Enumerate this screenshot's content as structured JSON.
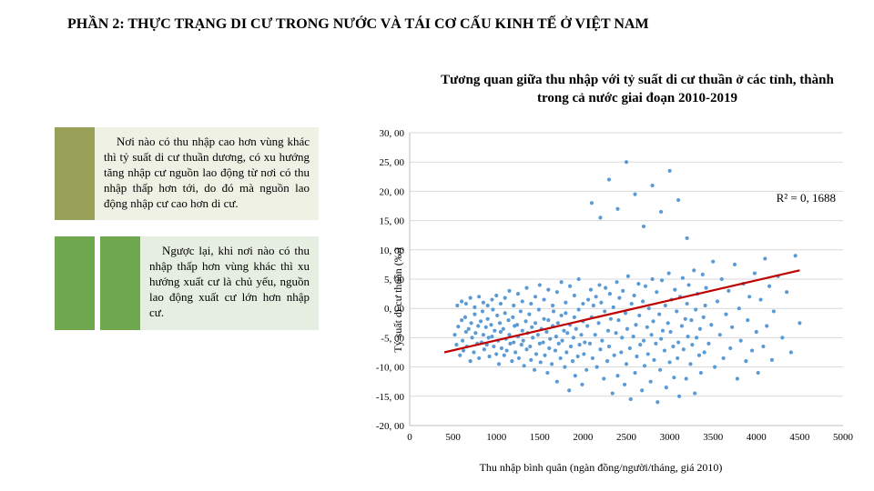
{
  "page_title": "PHẦN 2: THỰC TRẠNG DI CƯ TRONG NƯỚC VÀ TÁI CƠ CẤU KINH TẾ Ở VIỆT NAM",
  "chart_title": "Tương quan giữa thu nhập với tỷ suất di cư thuần ở các tỉnh, thành trong cả nước giai đoạn 2010-2019",
  "para1": "Nơi nào có thu nhập cao hơn vùng khác thì tỷ suất di cư thuần dương, có xu hướng tăng nhập cư nguồn lao động từ nơi có thu nhập thấp hơn tới, do đó mà nguồn lao động nhập cư cao hơn di cư.",
  "para2": "Ngược lại, khi nơi nào có thu nhập thấp hơn vùng khác thì xu hướng xuất cư là chủ yếu, nguồn lao động xuất cư lớn hơn nhập cư.",
  "r2_label": "R² = 0, 1688",
  "chart": {
    "type": "scatter",
    "xlim": [
      0,
      5000
    ],
    "ylim": [
      -20,
      30
    ],
    "xticks": [
      0,
      500,
      1000,
      1500,
      2000,
      2500,
      3000,
      3500,
      4000,
      4500,
      5000
    ],
    "xtick_labels": [
      "0",
      "500",
      "1000",
      "1500",
      "2000",
      "2500",
      "3000",
      "3500",
      "4000",
      "4500",
      "5000"
    ],
    "yticks": [
      -20,
      -15,
      -10,
      -5,
      0,
      5,
      10,
      15,
      20,
      25,
      30
    ],
    "ytick_labels": [
      "-20, 00",
      "-15, 00",
      "-10, 00",
      "-5, 00",
      "0, 00",
      "5, 00",
      "10, 00",
      "15, 00",
      "20, 00",
      "25, 00",
      "30, 00"
    ],
    "ylabel": "Tỷ suất di cư thuần (‰)",
    "xlabel": "Thu nhập bình quân (ngàn đồng/người/tháng, giá 2010)",
    "point_color": "#5b9bd5",
    "point_radius": 2.1,
    "grid_color": "#d9d9d9",
    "axis_color": "#bfbfbf",
    "trend_color": "#c00000",
    "trend_width": 2.2,
    "trend_line": {
      "x1": 400,
      "y1": -7.5,
      "x2": 4500,
      "y2": 6.5
    },
    "background_color": "#ffffff",
    "font_size_tick": 11,
    "font_size_label": 12,
    "points": [
      [
        520,
        -4.5
      ],
      [
        540,
        -6.2
      ],
      [
        560,
        -3.1
      ],
      [
        580,
        -8.0
      ],
      [
        600,
        -2.0
      ],
      [
        610,
        -5.5
      ],
      [
        620,
        -7.2
      ],
      [
        640,
        -1.5
      ],
      [
        650,
        -4.0
      ],
      [
        660,
        -6.5
      ],
      [
        680,
        -3.5
      ],
      [
        700,
        -9.0
      ],
      [
        710,
        -2.5
      ],
      [
        720,
        -5.0
      ],
      [
        740,
        -7.5
      ],
      [
        750,
        -1.0
      ],
      [
        760,
        -4.2
      ],
      [
        780,
        -6.0
      ],
      [
        790,
        -3.0
      ],
      [
        800,
        -8.5
      ],
      [
        820,
        -2.2
      ],
      [
        830,
        -5.8
      ],
      [
        840,
        -0.5
      ],
      [
        850,
        -4.5
      ],
      [
        860,
        -7.0
      ],
      [
        880,
        -3.2
      ],
      [
        890,
        -6.2
      ],
      [
        900,
        -1.8
      ],
      [
        910,
        -5.0
      ],
      [
        920,
        -8.2
      ],
      [
        940,
        -2.8
      ],
      [
        950,
        -4.8
      ],
      [
        960,
        -0.2
      ],
      [
        970,
        -6.5
      ],
      [
        980,
        -3.8
      ],
      [
        1000,
        -7.8
      ],
      [
        1010,
        -1.2
      ],
      [
        1020,
        -5.5
      ],
      [
        1030,
        -9.5
      ],
      [
        1040,
        -2.5
      ],
      [
        1050,
        -4.0
      ],
      [
        1060,
        -6.8
      ],
      [
        1080,
        -3.5
      ],
      [
        1090,
        -8.0
      ],
      [
        1100,
        -0.8
      ],
      [
        1110,
        -5.2
      ],
      [
        1120,
        -7.2
      ],
      [
        1140,
        -2.0
      ],
      [
        1150,
        -4.5
      ],
      [
        1160,
        -6.0
      ],
      [
        1180,
        -9.0
      ],
      [
        1190,
        -1.5
      ],
      [
        1200,
        -5.8
      ],
      [
        1210,
        -3.0
      ],
      [
        1220,
        -7.5
      ],
      [
        1240,
        -2.8
      ],
      [
        1250,
        -4.8
      ],
      [
        1260,
        -8.5
      ],
      [
        1280,
        -0.5
      ],
      [
        1290,
        -6.2
      ],
      [
        1300,
        -3.8
      ],
      [
        1310,
        -5.5
      ],
      [
        1320,
        -9.8
      ],
      [
        1340,
        -2.2
      ],
      [
        1350,
        -7.0
      ],
      [
        1360,
        -4.2
      ],
      [
        1380,
        -1.0
      ],
      [
        1390,
        -6.5
      ],
      [
        1400,
        -8.8
      ],
      [
        1410,
        -3.2
      ],
      [
        1420,
        -5.0
      ],
      [
        1440,
        -10.5
      ],
      [
        1450,
        -2.5
      ],
      [
        1460,
        -7.8
      ],
      [
        1480,
        -4.5
      ],
      [
        1490,
        -0.2
      ],
      [
        1500,
        -6.0
      ],
      [
        1510,
        -9.2
      ],
      [
        1520,
        -3.5
      ],
      [
        1540,
        -5.8
      ],
      [
        1550,
        -1.8
      ],
      [
        1560,
        -8.0
      ],
      [
        1580,
        -4.0
      ],
      [
        1590,
        -11.0
      ],
      [
        1600,
        -2.0
      ],
      [
        1610,
        -6.8
      ],
      [
        1620,
        -5.2
      ],
      [
        1640,
        -9.5
      ],
      [
        1650,
        -3.0
      ],
      [
        1660,
        -0.5
      ],
      [
        1680,
        -7.2
      ],
      [
        1690,
        -4.8
      ],
      [
        1700,
        -12.5
      ],
      [
        1710,
        -2.5
      ],
      [
        1720,
        -6.0
      ],
      [
        1740,
        -8.5
      ],
      [
        1750,
        -1.2
      ],
      [
        1760,
        -5.5
      ],
      [
        1780,
        -3.8
      ],
      [
        1790,
        -10.0
      ],
      [
        1800,
        -0.8
      ],
      [
        1810,
        -7.5
      ],
      [
        1820,
        -4.2
      ],
      [
        1840,
        -14.0
      ],
      [
        1850,
        -2.8
      ],
      [
        1860,
        -6.5
      ],
      [
        1880,
        -9.0
      ],
      [
        1890,
        -5.0
      ],
      [
        1900,
        -1.5
      ],
      [
        1910,
        -11.5
      ],
      [
        1920,
        -3.5
      ],
      [
        1940,
        -8.2
      ],
      [
        1950,
        -0.2
      ],
      [
        1960,
        -6.2
      ],
      [
        1980,
        -4.5
      ],
      [
        1990,
        -13.0
      ],
      [
        2000,
        -2.2
      ],
      [
        2010,
        -7.8
      ],
      [
        2020,
        -5.8
      ],
      [
        2040,
        -10.5
      ],
      [
        550,
        0.5
      ],
      [
        600,
        1.2
      ],
      [
        650,
        0.8
      ],
      [
        700,
        1.8
      ],
      [
        750,
        0.2
      ],
      [
        800,
        2.0
      ],
      [
        850,
        1.0
      ],
      [
        900,
        0.5
      ],
      [
        950,
        1.5
      ],
      [
        1000,
        2.2
      ],
      [
        1050,
        0.8
      ],
      [
        1100,
        1.8
      ],
      [
        1150,
        3.0
      ],
      [
        1200,
        0.5
      ],
      [
        1250,
        2.5
      ],
      [
        1300,
        1.2
      ],
      [
        1350,
        3.5
      ],
      [
        1400,
        0.8
      ],
      [
        1450,
        2.0
      ],
      [
        1500,
        4.0
      ],
      [
        1550,
        1.5
      ],
      [
        1600,
        3.2
      ],
      [
        1650,
        0.5
      ],
      [
        1700,
        2.8
      ],
      [
        1750,
        4.5
      ],
      [
        1800,
        1.0
      ],
      [
        1850,
        3.8
      ],
      [
        1900,
        2.2
      ],
      [
        1950,
        5.0
      ],
      [
        2000,
        0.8
      ],
      [
        2050,
        -3.0
      ],
      [
        2060,
        1.5
      ],
      [
        2080,
        -6.0
      ],
      [
        2090,
        3.2
      ],
      [
        2100,
        -1.5
      ],
      [
        2110,
        -8.5
      ],
      [
        2120,
        0.5
      ],
      [
        2140,
        -4.5
      ],
      [
        2150,
        2.0
      ],
      [
        2160,
        -10.0
      ],
      [
        2180,
        -2.5
      ],
      [
        2190,
        4.0
      ],
      [
        2200,
        -7.0
      ],
      [
        2210,
        1.0
      ],
      [
        2220,
        -5.5
      ],
      [
        2240,
        -12.0
      ],
      [
        2250,
        -0.5
      ],
      [
        2260,
        3.5
      ],
      [
        2280,
        -9.0
      ],
      [
        2290,
        -3.8
      ],
      [
        2300,
        -6.5
      ],
      [
        2310,
        2.5
      ],
      [
        2320,
        -1.8
      ],
      [
        2340,
        -14.5
      ],
      [
        2350,
        0.2
      ],
      [
        2360,
        -8.0
      ],
      [
        2380,
        -4.2
      ],
      [
        2390,
        4.5
      ],
      [
        2400,
        -11.5
      ],
      [
        2410,
        -2.0
      ],
      [
        2420,
        1.8
      ],
      [
        2440,
        -7.5
      ],
      [
        2450,
        -5.0
      ],
      [
        2460,
        3.0
      ],
      [
        2480,
        -13.0
      ],
      [
        2490,
        -0.8
      ],
      [
        2500,
        -9.5
      ],
      [
        2510,
        -3.5
      ],
      [
        2520,
        5.5
      ],
      [
        2540,
        -6.8
      ],
      [
        2550,
        -15.5
      ],
      [
        2560,
        0.8
      ],
      [
        2580,
        -4.8
      ],
      [
        2590,
        2.2
      ],
      [
        2600,
        -11.0
      ],
      [
        2610,
        -2.8
      ],
      [
        2620,
        -8.2
      ],
      [
        2640,
        4.2
      ],
      [
        2650,
        -1.2
      ],
      [
        2660,
        -6.2
      ],
      [
        2680,
        -14.0
      ],
      [
        2690,
        1.2
      ],
      [
        2700,
        -5.5
      ],
      [
        2710,
        -9.8
      ],
      [
        2720,
        3.8
      ],
      [
        2740,
        -3.2
      ],
      [
        2750,
        -7.8
      ],
      [
        2760,
        0.0
      ],
      [
        2780,
        -12.5
      ],
      [
        2790,
        -4.5
      ],
      [
        2800,
        5.0
      ],
      [
        2810,
        -2.2
      ],
      [
        2820,
        -8.8
      ],
      [
        2840,
        -6.0
      ],
      [
        2850,
        2.8
      ],
      [
        2860,
        -16.0
      ],
      [
        2880,
        -1.0
      ],
      [
        2890,
        -10.5
      ],
      [
        2900,
        -5.2
      ],
      [
        2910,
        4.8
      ],
      [
        2920,
        -3.8
      ],
      [
        2940,
        -7.2
      ],
      [
        2950,
        0.5
      ],
      [
        2960,
        -13.5
      ],
      [
        2980,
        -2.5
      ],
      [
        2990,
        6.0
      ],
      [
        3000,
        -9.2
      ],
      [
        3010,
        -4.0
      ],
      [
        3020,
        1.5
      ],
      [
        3040,
        -6.5
      ],
      [
        3050,
        -11.8
      ],
      [
        3060,
        3.2
      ],
      [
        3080,
        -0.5
      ],
      [
        3090,
        -8.5
      ],
      [
        3100,
        -5.8
      ],
      [
        3110,
        -15.0
      ],
      [
        3120,
        2.0
      ],
      [
        3140,
        -3.0
      ],
      [
        3150,
        5.2
      ],
      [
        3160,
        -7.0
      ],
      [
        3180,
        -1.8
      ],
      [
        3190,
        -12.0
      ],
      [
        3200,
        0.8
      ],
      [
        3210,
        -4.8
      ],
      [
        3220,
        4.0
      ],
      [
        3240,
        -9.5
      ],
      [
        3250,
        -2.0
      ],
      [
        3260,
        -6.2
      ],
      [
        3280,
        6.5
      ],
      [
        3290,
        -14.5
      ],
      [
        3300,
        -0.2
      ],
      [
        3310,
        -5.0
      ],
      [
        3320,
        2.5
      ],
      [
        3340,
        -8.0
      ],
      [
        3350,
        -3.5
      ],
      [
        3360,
        -11.0
      ],
      [
        3380,
        5.8
      ],
      [
        3390,
        -1.5
      ],
      [
        3400,
        -7.5
      ],
      [
        3410,
        0.5
      ],
      [
        2100,
        18.0
      ],
      [
        2200,
        15.5
      ],
      [
        2300,
        22.0
      ],
      [
        2400,
        17.0
      ],
      [
        2500,
        25.0
      ],
      [
        2600,
        19.5
      ],
      [
        2700,
        14.0
      ],
      [
        2800,
        21.0
      ],
      [
        2900,
        16.5
      ],
      [
        3000,
        23.5
      ],
      [
        3100,
        18.5
      ],
      [
        3200,
        12.0
      ],
      [
        3420,
        3.5
      ],
      [
        3450,
        -6.0
      ],
      [
        3480,
        -2.8
      ],
      [
        3500,
        8.0
      ],
      [
        3520,
        -10.0
      ],
      [
        3550,
        1.2
      ],
      [
        3580,
        -4.5
      ],
      [
        3600,
        5.0
      ],
      [
        3620,
        -8.5
      ],
      [
        3650,
        -1.0
      ],
      [
        3680,
        3.0
      ],
      [
        3700,
        -6.8
      ],
      [
        3720,
        -3.2
      ],
      [
        3750,
        7.5
      ],
      [
        3780,
        -12.0
      ],
      [
        3800,
        0.0
      ],
      [
        3820,
        -5.5
      ],
      [
        3850,
        4.2
      ],
      [
        3880,
        -9.0
      ],
      [
        3900,
        -2.0
      ],
      [
        3920,
        2.0
      ],
      [
        3950,
        -7.2
      ],
      [
        3980,
        6.0
      ],
      [
        4000,
        -4.0
      ],
      [
        4020,
        -11.0
      ],
      [
        4050,
        1.5
      ],
      [
        4080,
        -6.5
      ],
      [
        4100,
        8.5
      ],
      [
        4120,
        -3.0
      ],
      [
        4150,
        3.8
      ],
      [
        4180,
        -8.8
      ],
      [
        4200,
        -0.5
      ],
      [
        4250,
        5.5
      ],
      [
        4300,
        -5.0
      ],
      [
        4350,
        2.8
      ],
      [
        4400,
        -7.5
      ],
      [
        4450,
        9.0
      ],
      [
        4500,
        -2.5
      ]
    ]
  }
}
